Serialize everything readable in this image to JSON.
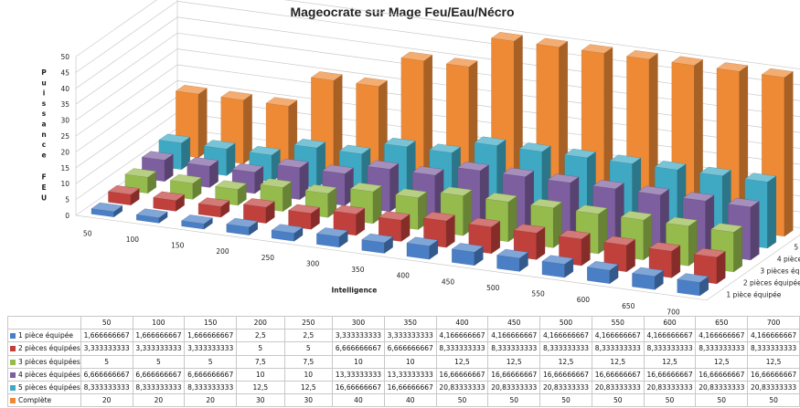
{
  "chart_data": {
    "type": "bar",
    "subtype": "3d-clustered-depth",
    "title": "Mageocrate sur Mage Feu/Eau/Nécro",
    "xlabel": "Intelligence",
    "ylabel_lines": [
      "Puissance",
      "FEU"
    ],
    "zlim": [
      0,
      50
    ],
    "z_ticks": [
      0,
      5,
      10,
      15,
      20,
      25,
      30,
      35,
      40,
      45,
      50
    ],
    "grid": true,
    "categories": [
      50,
      100,
      150,
      200,
      250,
      300,
      350,
      400,
      450,
      500,
      550,
      600,
      650,
      700
    ],
    "series": [
      {
        "name": "1 pièce équipée",
        "color": "#4a7fc6",
        "values": [
          1.666666667,
          1.666666667,
          1.666666667,
          2.5,
          2.5,
          3.333333333,
          3.333333333,
          4.166666667,
          4.166666667,
          4.166666667,
          4.166666667,
          4.166666667,
          4.166666667,
          4.166666667
        ],
        "labels": [
          "1,666666667",
          "1,666666667",
          "1,666666667",
          "2,5",
          "2,5",
          "3,333333333",
          "3,333333333",
          "4,166666667",
          "4,166666667",
          "4,166666667",
          "4,166666667",
          "4,166666667",
          "4,166666667",
          "4,166666667"
        ]
      },
      {
        "name": "2 pièces équipées",
        "color": "#c0403c",
        "values": [
          3.333333333,
          3.333333333,
          3.333333333,
          5,
          5,
          6.666666667,
          6.666666667,
          8.333333333,
          8.333333333,
          8.333333333,
          8.333333333,
          8.333333333,
          8.333333333,
          8.333333333
        ],
        "labels": [
          "3,333333333",
          "3,333333333",
          "3,333333333",
          "5",
          "5",
          "6,666666667",
          "6,666666667",
          "8,333333333",
          "8,333333333",
          "8,333333333",
          "8,333333333",
          "8,333333333",
          "8,333333333",
          "8,333333333"
        ]
      },
      {
        "name": "3 pièces équipées",
        "color": "#96bb4d",
        "values": [
          5,
          5,
          5,
          7.5,
          7.5,
          10,
          10,
          12.5,
          12.5,
          12.5,
          12.5,
          12.5,
          12.5,
          12.5
        ],
        "labels": [
          "5",
          "5",
          "5",
          "7,5",
          "7,5",
          "10",
          "10",
          "12,5",
          "12,5",
          "12,5",
          "12,5",
          "12,5",
          "12,5",
          "12,5"
        ]
      },
      {
        "name": "4 pièces équipées",
        "color": "#7d5fa0",
        "values": [
          6.666666667,
          6.666666667,
          6.666666667,
          10,
          10,
          13.33333333,
          13.33333333,
          16.66666667,
          16.66666667,
          16.66666667,
          16.66666667,
          16.66666667,
          16.66666667,
          16.66666667
        ],
        "labels": [
          "6,666666667",
          "6,666666667",
          "6,666666667",
          "10",
          "10",
          "13,33333333",
          "13,33333333",
          "16,66666667",
          "16,66666667",
          "16,66666667",
          "16,66666667",
          "16,66666667",
          "16,66666667",
          "16,66666667"
        ]
      },
      {
        "name": "5 pièces équipées",
        "color": "#3fa9c4",
        "values": [
          8.333333333,
          8.333333333,
          8.333333333,
          12.5,
          12.5,
          16.66666667,
          16.66666667,
          20.83333333,
          20.83333333,
          20.83333333,
          20.83333333,
          20.83333333,
          20.83333333,
          20.83333333
        ],
        "labels": [
          "8,333333333",
          "8,333333333",
          "8,333333333",
          "12,5",
          "12,5",
          "16,66666667",
          "16,66666667",
          "20,83333333",
          "20,83333333",
          "20,83333333",
          "20,83333333",
          "20,83333333",
          "20,83333333",
          "20,83333333"
        ]
      },
      {
        "name": "Complète",
        "color": "#ee8a35",
        "values": [
          20,
          20,
          20,
          30,
          30,
          40,
          40,
          50,
          50,
          50,
          50,
          50,
          50,
          50
        ],
        "labels": [
          "20",
          "20",
          "20",
          "30",
          "30",
          "40",
          "40",
          "50",
          "50",
          "50",
          "50",
          "50",
          "50",
          "50"
        ]
      }
    ]
  }
}
